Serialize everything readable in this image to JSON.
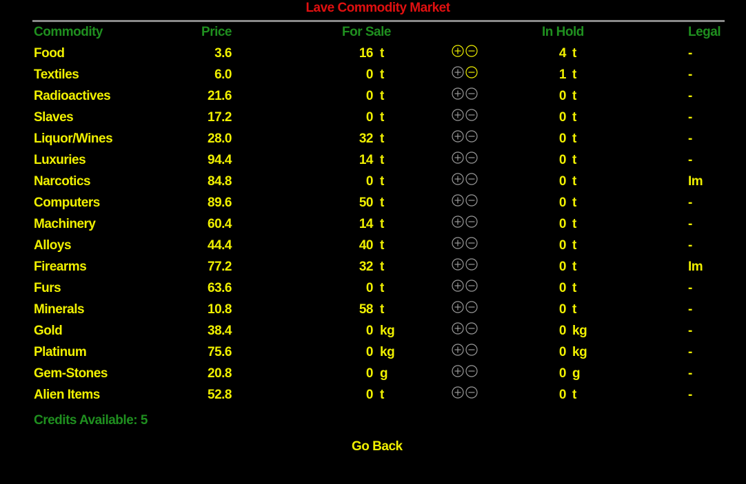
{
  "title": "Lave Commodity Market",
  "headers": {
    "commodity": "Commodity",
    "price": "Price",
    "for_sale": "For Sale",
    "in_hold": "In Hold",
    "legal": "Legal"
  },
  "colors": {
    "title": "#e01010",
    "header": "#1f8f1f",
    "row_text": "#f0f000",
    "button_active": "#f0f000",
    "button_inactive": "#9a9a9a",
    "background": "#000000"
  },
  "rows": [
    {
      "name": "Food",
      "price": "3.6",
      "for_sale": "16",
      "sale_unit": "t",
      "in_hold": "4",
      "hold_unit": "t",
      "legal": "-",
      "buy_enabled": true,
      "sell_enabled": true
    },
    {
      "name": "Textiles",
      "price": "6.0",
      "for_sale": "0",
      "sale_unit": "t",
      "in_hold": "1",
      "hold_unit": "t",
      "legal": "-",
      "buy_enabled": false,
      "sell_enabled": true
    },
    {
      "name": "Radioactives",
      "price": "21.6",
      "for_sale": "0",
      "sale_unit": "t",
      "in_hold": "0",
      "hold_unit": "t",
      "legal": "-",
      "buy_enabled": false,
      "sell_enabled": false
    },
    {
      "name": "Slaves",
      "price": "17.2",
      "for_sale": "0",
      "sale_unit": "t",
      "in_hold": "0",
      "hold_unit": "t",
      "legal": "-",
      "buy_enabled": false,
      "sell_enabled": false
    },
    {
      "name": "Liquor/Wines",
      "price": "28.0",
      "for_sale": "32",
      "sale_unit": "t",
      "in_hold": "0",
      "hold_unit": "t",
      "legal": "-",
      "buy_enabled": false,
      "sell_enabled": false
    },
    {
      "name": "Luxuries",
      "price": "94.4",
      "for_sale": "14",
      "sale_unit": "t",
      "in_hold": "0",
      "hold_unit": "t",
      "legal": "-",
      "buy_enabled": false,
      "sell_enabled": false
    },
    {
      "name": "Narcotics",
      "price": "84.8",
      "for_sale": "0",
      "sale_unit": "t",
      "in_hold": "0",
      "hold_unit": "t",
      "legal": "Im",
      "buy_enabled": false,
      "sell_enabled": false
    },
    {
      "name": "Computers",
      "price": "89.6",
      "for_sale": "50",
      "sale_unit": "t",
      "in_hold": "0",
      "hold_unit": "t",
      "legal": "-",
      "buy_enabled": false,
      "sell_enabled": false
    },
    {
      "name": "Machinery",
      "price": "60.4",
      "for_sale": "14",
      "sale_unit": "t",
      "in_hold": "0",
      "hold_unit": "t",
      "legal": "-",
      "buy_enabled": false,
      "sell_enabled": false
    },
    {
      "name": "Alloys",
      "price": "44.4",
      "for_sale": "40",
      "sale_unit": "t",
      "in_hold": "0",
      "hold_unit": "t",
      "legal": "-",
      "buy_enabled": false,
      "sell_enabled": false
    },
    {
      "name": "Firearms",
      "price": "77.2",
      "for_sale": "32",
      "sale_unit": "t",
      "in_hold": "0",
      "hold_unit": "t",
      "legal": "Im",
      "buy_enabled": false,
      "sell_enabled": false
    },
    {
      "name": "Furs",
      "price": "63.6",
      "for_sale": "0",
      "sale_unit": "t",
      "in_hold": "0",
      "hold_unit": "t",
      "legal": "-",
      "buy_enabled": false,
      "sell_enabled": false
    },
    {
      "name": "Minerals",
      "price": "10.8",
      "for_sale": "58",
      "sale_unit": "t",
      "in_hold": "0",
      "hold_unit": "t",
      "legal": "-",
      "buy_enabled": false,
      "sell_enabled": false
    },
    {
      "name": "Gold",
      "price": "38.4",
      "for_sale": "0",
      "sale_unit": "kg",
      "in_hold": "0",
      "hold_unit": "kg",
      "legal": "-",
      "buy_enabled": false,
      "sell_enabled": false
    },
    {
      "name": "Platinum",
      "price": "75.6",
      "for_sale": "0",
      "sale_unit": "kg",
      "in_hold": "0",
      "hold_unit": "kg",
      "legal": "-",
      "buy_enabled": false,
      "sell_enabled": false
    },
    {
      "name": "Gem-Stones",
      "price": "20.8",
      "for_sale": "0",
      "sale_unit": "g",
      "in_hold": "0",
      "hold_unit": "g",
      "legal": "-",
      "buy_enabled": false,
      "sell_enabled": false
    },
    {
      "name": "Alien Items",
      "price": "52.8",
      "for_sale": "0",
      "sale_unit": "t",
      "in_hold": "0",
      "hold_unit": "t",
      "legal": "-",
      "buy_enabled": false,
      "sell_enabled": false
    }
  ],
  "credits_text": "Credits Available: 5",
  "go_back_label": "Go Back"
}
